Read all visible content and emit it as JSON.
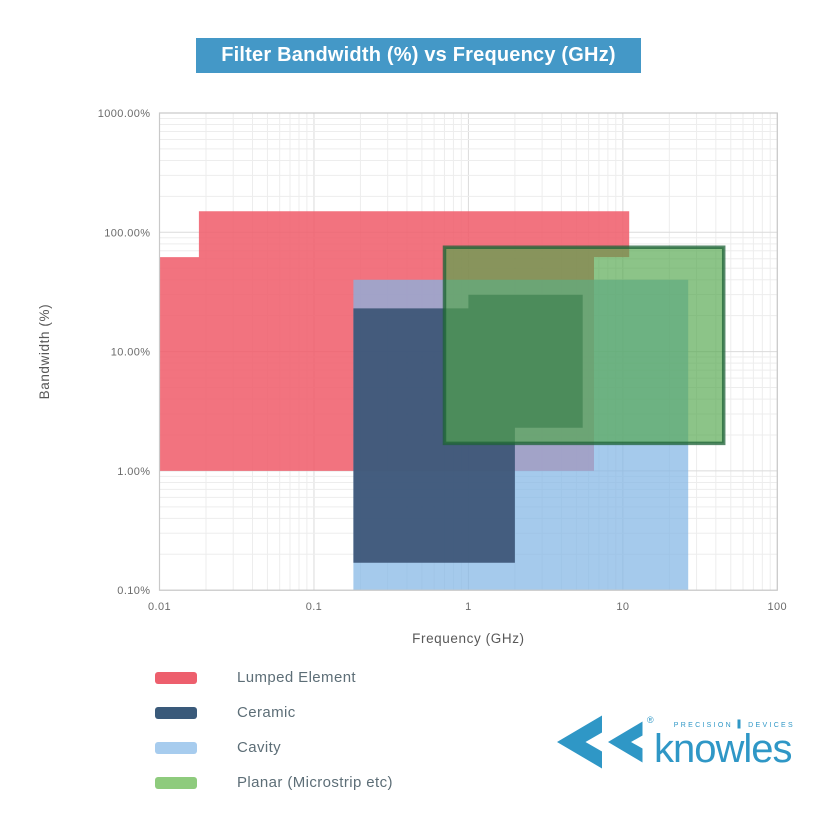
{
  "title": {
    "text": "Filter Bandwidth (%) vs Frequency (GHz)",
    "bg_color": "#4498C7",
    "text_color": "#FFFFFF"
  },
  "chart_data": {
    "type": "area",
    "title": "Filter Bandwidth (%) vs Frequency (GHz)",
    "x_axis": {
      "label": "Frequency (GHz)",
      "scale": "log",
      "min": 0.01,
      "max": 100,
      "ticks": [
        {
          "value": 0.01,
          "label": "0.01"
        },
        {
          "value": 0.1,
          "label": "0.1"
        },
        {
          "value": 1,
          "label": "1"
        },
        {
          "value": 10,
          "label": "10"
        },
        {
          "value": 100,
          "label": "100"
        }
      ]
    },
    "y_axis": {
      "label": "Bandwidth (%)",
      "scale": "log",
      "min": 0.1,
      "max": 1000,
      "ticks": [
        {
          "value": 1000,
          "label": "1000.00%"
        },
        {
          "value": 100,
          "label": "100.00%"
        },
        {
          "value": 10,
          "label": "10.00%"
        },
        {
          "value": 1,
          "label": "1.00%"
        },
        {
          "value": 0.1,
          "label": "0.10%"
        }
      ]
    },
    "grid": {
      "show_minor": true,
      "minor_color": "#EDEDED",
      "major_color": "#DBDBDB",
      "border_color": "#C9C9C9"
    },
    "legend_position": "bottom-left",
    "series": [
      {
        "name": "Lumped Element",
        "fill": "rgba(240,91,105,0.85)",
        "points_freq_ghz_bw_pct": [
          [
            0.01,
            1
          ],
          [
            0.01,
            62
          ],
          [
            0.018,
            62
          ],
          [
            0.018,
            150
          ],
          [
            11,
            150
          ],
          [
            11,
            62
          ],
          [
            6.5,
            62
          ],
          [
            6.5,
            1
          ]
        ]
      },
      {
        "name": "Cavity",
        "fill": "rgba(130,182,228,0.72)",
        "points_freq_ghz_bw_pct": [
          [
            0.18,
            0.1
          ],
          [
            0.18,
            40
          ],
          [
            26.5,
            40
          ],
          [
            26.5,
            0.1
          ]
        ]
      },
      {
        "name": "Ceramic",
        "fill": "rgba(60,85,118,0.93)",
        "points_freq_ghz_bw_pct": [
          [
            0.18,
            0.17
          ],
          [
            0.18,
            23
          ],
          [
            1,
            23
          ],
          [
            1,
            30
          ],
          [
            5.5,
            30
          ],
          [
            5.5,
            2.3
          ],
          [
            2,
            2.3
          ],
          [
            2,
            0.17
          ]
        ]
      },
      {
        "name": "Planar (Microstrip etc)",
        "fill": "rgba(80,165,75,0.66)",
        "stroke": "rgba(30,98,55,0.75)",
        "stroke_width": 3.5,
        "points_freq_ghz_bw_pct": [
          [
            0.7,
            1.7
          ],
          [
            0.7,
            75
          ],
          [
            45,
            75
          ],
          [
            45,
            1.7
          ]
        ]
      }
    ]
  },
  "legend": {
    "items": [
      {
        "label": "Lumped Element",
        "color": "#ED5F6D"
      },
      {
        "label": "Ceramic",
        "color": "#3A5A7A"
      },
      {
        "label": "Cavity",
        "color": "#A7CCEE"
      },
      {
        "label": "Planar (Microstrip etc)",
        "color": "#8ECB7D"
      }
    ]
  },
  "logo": {
    "brand": "knowles",
    "tagline_left": "PRECISION",
    "tagline_right": "DEVICES",
    "registered": "®",
    "color": "#2F97C6"
  }
}
